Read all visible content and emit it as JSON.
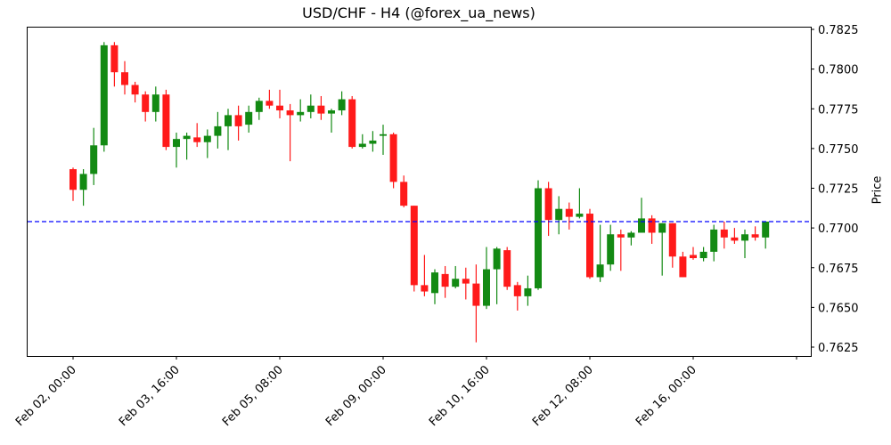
{
  "chart_data": {
    "type": "candlestick",
    "title": "USD/CHF - H4 (@forex_ua_news)",
    "xlabel": "",
    "ylabel": "Price",
    "ylim": [
      0.7619,
      0.7828
    ],
    "y_ticks": [
      "0.7625",
      "0.7650",
      "0.7675",
      "0.7700",
      "0.7725",
      "0.7750",
      "0.7775",
      "0.7800",
      "0.7825"
    ],
    "x_ticks": [
      {
        "index": 0,
        "label": "Feb 02, 00:00"
      },
      {
        "index": 10,
        "label": "Feb 03, 16:00"
      },
      {
        "index": 20,
        "label": "Feb 05, 08:00"
      },
      {
        "index": 30,
        "label": "Feb 09, 00:00"
      },
      {
        "index": 40,
        "label": "Feb 10, 16:00"
      },
      {
        "index": 50,
        "label": "Feb 12, 08:00"
      },
      {
        "index": 60,
        "label": "Feb 16, 00:00"
      },
      {
        "index": 70,
        "label": ""
      }
    ],
    "reference_line": {
      "value": 0.7704,
      "style": "dashed",
      "color": "#0000ff"
    },
    "colors": {
      "up": "#138a13",
      "down": "#ff1a1a"
    },
    "grid": false,
    "ohlc": [
      [
        0.7737,
        0.7738,
        0.7717,
        0.7724
      ],
      [
        0.7724,
        0.7737,
        0.7714,
        0.7734
      ],
      [
        0.7734,
        0.7763,
        0.7727,
        0.7752
      ],
      [
        0.7752,
        0.7817,
        0.7748,
        0.7815
      ],
      [
        0.7815,
        0.7817,
        0.7789,
        0.7798
      ],
      [
        0.7798,
        0.7805,
        0.7784,
        0.779
      ],
      [
        0.779,
        0.7792,
        0.7779,
        0.7784
      ],
      [
        0.7784,
        0.7786,
        0.7767,
        0.7773
      ],
      [
        0.7773,
        0.7789,
        0.7767,
        0.7784
      ],
      [
        0.7784,
        0.7787,
        0.7749,
        0.7751
      ],
      [
        0.7751,
        0.776,
        0.7738,
        0.7756
      ],
      [
        0.7756,
        0.776,
        0.7743,
        0.7758
      ],
      [
        0.7757,
        0.7766,
        0.7751,
        0.7754
      ],
      [
        0.7754,
        0.7762,
        0.7744,
        0.7758
      ],
      [
        0.7758,
        0.7773,
        0.775,
        0.7764
      ],
      [
        0.7764,
        0.7775,
        0.7749,
        0.7771
      ],
      [
        0.7771,
        0.7777,
        0.7755,
        0.7764
      ],
      [
        0.7765,
        0.7777,
        0.776,
        0.7773
      ],
      [
        0.7773,
        0.7782,
        0.7768,
        0.778
      ],
      [
        0.778,
        0.7787,
        0.7775,
        0.7777
      ],
      [
        0.7777,
        0.7787,
        0.7769,
        0.7774
      ],
      [
        0.7774,
        0.7778,
        0.7742,
        0.7771
      ],
      [
        0.7771,
        0.7781,
        0.7767,
        0.7773
      ],
      [
        0.7773,
        0.7784,
        0.7769,
        0.7777
      ],
      [
        0.7777,
        0.7783,
        0.7768,
        0.7772
      ],
      [
        0.7772,
        0.7775,
        0.776,
        0.7774
      ],
      [
        0.7774,
        0.7786,
        0.7771,
        0.7781
      ],
      [
        0.7781,
        0.7783,
        0.775,
        0.7751
      ],
      [
        0.7751,
        0.7759,
        0.775,
        0.7753
      ],
      [
        0.7753,
        0.7761,
        0.7748,
        0.7755
      ],
      [
        0.7758,
        0.7765,
        0.7746,
        0.7759
      ],
      [
        0.7759,
        0.776,
        0.7725,
        0.7729
      ],
      [
        0.7729,
        0.7733,
        0.7713,
        0.7714
      ],
      [
        0.7714,
        0.7714,
        0.766,
        0.7664
      ],
      [
        0.7664,
        0.7683,
        0.7657,
        0.766
      ],
      [
        0.7659,
        0.7674,
        0.7652,
        0.7672
      ],
      [
        0.7671,
        0.7676,
        0.7656,
        0.7663
      ],
      [
        0.7663,
        0.7676,
        0.7662,
        0.7668
      ],
      [
        0.7668,
        0.7675,
        0.7655,
        0.7665
      ],
      [
        0.7665,
        0.7677,
        0.7628,
        0.7651
      ],
      [
        0.7651,
        0.7688,
        0.7649,
        0.7674
      ],
      [
        0.7674,
        0.7688,
        0.7652,
        0.7687
      ],
      [
        0.7686,
        0.7688,
        0.7661,
        0.7663
      ],
      [
        0.7664,
        0.7666,
        0.7648,
        0.7657
      ],
      [
        0.7657,
        0.767,
        0.7651,
        0.7662
      ],
      [
        0.7662,
        0.773,
        0.7661,
        0.7725
      ],
      [
        0.7725,
        0.7729,
        0.7695,
        0.7705
      ],
      [
        0.7705,
        0.772,
        0.7696,
        0.7712
      ],
      [
        0.7712,
        0.7716,
        0.7699,
        0.7707
      ],
      [
        0.7707,
        0.7725,
        0.7706,
        0.7709
      ],
      [
        0.7709,
        0.7712,
        0.7668,
        0.7669
      ],
      [
        0.7669,
        0.7702,
        0.7666,
        0.7677
      ],
      [
        0.7677,
        0.7702,
        0.7673,
        0.7696
      ],
      [
        0.7696,
        0.7699,
        0.7673,
        0.7694
      ],
      [
        0.7694,
        0.7698,
        0.7689,
        0.7697
      ],
      [
        0.7697,
        0.7719,
        0.7697,
        0.7706
      ],
      [
        0.7706,
        0.7708,
        0.769,
        0.7697
      ],
      [
        0.7697,
        0.7703,
        0.767,
        0.7703
      ],
      [
        0.7703,
        0.7703,
        0.7675,
        0.7682
      ],
      [
        0.7682,
        0.7685,
        0.7669,
        0.7669
      ],
      [
        0.7683,
        0.7688,
        0.768,
        0.7681
      ],
      [
        0.7681,
        0.7688,
        0.7679,
        0.7685
      ],
      [
        0.7685,
        0.7702,
        0.7679,
        0.7699
      ],
      [
        0.7699,
        0.7704,
        0.7687,
        0.7694
      ],
      [
        0.7694,
        0.77,
        0.769,
        0.7692
      ],
      [
        0.7692,
        0.7699,
        0.7681,
        0.7696
      ],
      [
        0.7696,
        0.7701,
        0.7692,
        0.7694
      ],
      [
        0.7694,
        0.7704,
        0.7687,
        0.7704
      ]
    ]
  }
}
